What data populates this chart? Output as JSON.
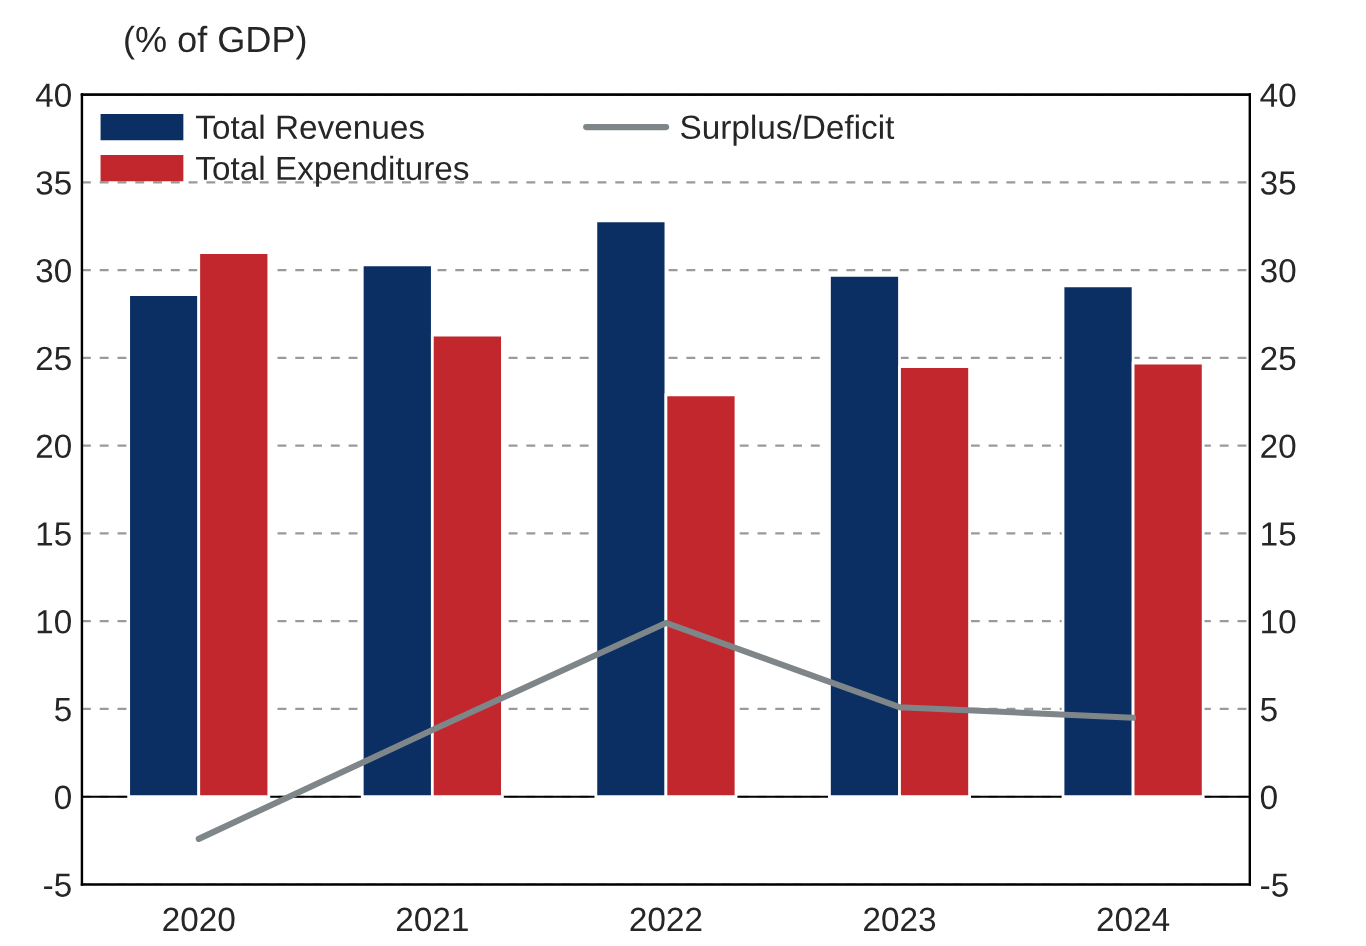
{
  "chart_data": {
    "type": "bar",
    "subtitle": "(% of GDP)",
    "categories": [
      "2020",
      "2021",
      "2022",
      "2023",
      "2024"
    ],
    "series": [
      {
        "name": "Total Revenues",
        "color": "#0b2f62",
        "values": [
          28.6,
          30.3,
          32.8,
          29.7,
          29.1
        ]
      },
      {
        "name": "Total Expenditures",
        "color": "#c1272d",
        "values": [
          31.0,
          26.3,
          22.9,
          24.5,
          24.7
        ]
      },
      {
        "name": "Surplus/Deficit",
        "type": "line",
        "color": "#7f8689",
        "values": [
          -2.4,
          3.8,
          9.9,
          5.1,
          4.5
        ]
      }
    ],
    "ylim": [
      -5,
      40
    ],
    "yticks": [
      -5,
      0,
      5,
      10,
      15,
      20,
      25,
      30,
      35,
      40
    ],
    "y2lim": [
      -5,
      40
    ],
    "y2ticks": [
      -5,
      0,
      5,
      10,
      15,
      20,
      25,
      30,
      35,
      40
    ],
    "grid": "y",
    "legend": "top",
    "marker": "none",
    "line_style": "solid"
  }
}
